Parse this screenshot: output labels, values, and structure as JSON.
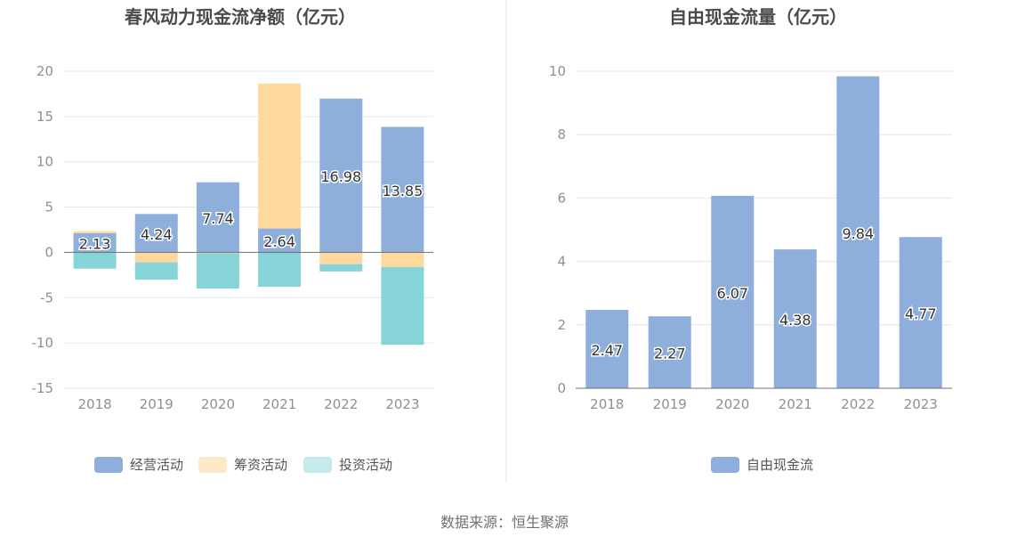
{
  "source": "数据来源：恒生聚源",
  "colors": {
    "operating": "#8eaedc",
    "financing": "#fed89c",
    "investing": "#86d4d8",
    "free": "#8eaedc",
    "grid": "#e3e6ee",
    "axis": "#707070",
    "tick": "#909090",
    "title": "#4a4a4a",
    "divider": "#e6e6e6",
    "legend_financing": "#fde8c8",
    "legend_investing": "#c4eaec"
  },
  "chart_data": [
    {
      "type": "bar",
      "stacked": true,
      "title": "春风动力现金流净额（亿元）",
      "categories": [
        "2018",
        "2019",
        "2020",
        "2021",
        "2022",
        "2023"
      ],
      "ylim": [
        -15,
        20
      ],
      "yticks": [
        20,
        15,
        10,
        5,
        0,
        -5,
        -10,
        -15
      ],
      "grid": true,
      "legend_position": "bottom",
      "series": [
        {
          "name": "经营活动",
          "values": [
            2.13,
            4.24,
            7.74,
            2.64,
            16.98,
            13.85
          ],
          "labels": [
            "2.13",
            "4.24",
            "7.74",
            "2.64",
            "16.98",
            "13.85"
          ]
        },
        {
          "name": "筹资活动",
          "values": [
            0.2,
            -1.1,
            -0.1,
            16.0,
            -1.3,
            -1.6
          ]
        },
        {
          "name": "投资活动",
          "values": [
            -1.8,
            -1.9,
            -3.9,
            -3.8,
            -0.8,
            -8.6
          ]
        }
      ]
    },
    {
      "type": "bar",
      "title": "自由现金流量（亿元）",
      "categories": [
        "2018",
        "2019",
        "2020",
        "2021",
        "2022",
        "2023"
      ],
      "ylim": [
        0,
        10
      ],
      "yticks": [
        10,
        8,
        6,
        4,
        2,
        0
      ],
      "grid": true,
      "legend_position": "bottom",
      "series": [
        {
          "name": "自由现金流",
          "values": [
            2.47,
            2.27,
            6.07,
            4.38,
            9.84,
            4.77
          ],
          "labels": [
            "2.47",
            "2.27",
            "6.07",
            "4.38",
            "9.84",
            "4.77"
          ]
        }
      ]
    }
  ]
}
